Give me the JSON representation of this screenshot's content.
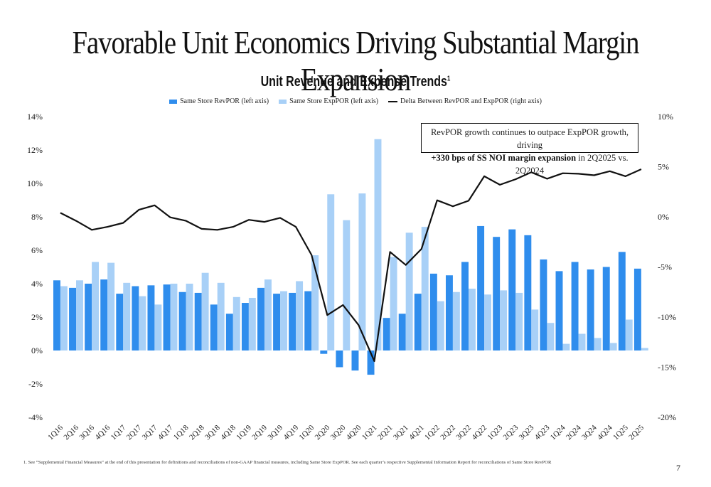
{
  "page": {
    "title": "Favorable Unit Economics Driving Substantial Margin Expansion",
    "footnote": "1. See “Supplemental Financial Measures” at the end of this presentation for definitions and reconciliations of non-GAAP financial measures, including Same Store ExpPOR. See each quarter’s respective Supplemental Information Report for reconciliations of Same Store RevPOR",
    "page_number": "7"
  },
  "callout": {
    "line1": "RevPOR growth continues to outpace ExpPOR growth, driving",
    "line2_bold": "+330 bps of SS NOI margin expansion",
    "line2_rest": " in 2Q2025 vs. 2Q2024"
  },
  "colors": {
    "revpor": "#2f8ded",
    "exppor": "#a8d0f7",
    "delta": "#111111"
  },
  "chart_data": {
    "type": "bar",
    "title": "Unit Revenue and Expense Trends",
    "title_footnote_marker": "1",
    "categories": [
      "1Q16",
      "2Q16",
      "3Q16",
      "4Q16",
      "1Q17",
      "2Q17",
      "3Q17",
      "4Q17",
      "1Q18",
      "2Q18",
      "3Q18",
      "4Q18",
      "1Q19",
      "2Q19",
      "3Q19",
      "4Q19",
      "1Q20",
      "2Q20",
      "3Q20",
      "4Q20",
      "1Q21",
      "2Q21",
      "3Q21",
      "4Q21",
      "1Q22",
      "2Q22",
      "3Q22",
      "4Q22",
      "1Q23",
      "2Q23",
      "3Q23",
      "4Q23",
      "1Q24",
      "2Q24",
      "3Q24",
      "4Q24",
      "1Q25",
      "2Q25"
    ],
    "series": [
      {
        "name": "Same Store RevPOR (left axis)",
        "type": "bar",
        "axis": "left",
        "values": [
          4.2,
          3.75,
          4.0,
          4.25,
          3.4,
          3.85,
          3.9,
          3.95,
          3.5,
          3.45,
          2.75,
          2.2,
          2.85,
          3.75,
          3.4,
          3.45,
          3.55,
          -0.2,
          -1.0,
          -1.2,
          -1.45,
          1.95,
          2.2,
          3.4,
          4.6,
          4.5,
          5.3,
          7.45,
          6.8,
          7.25,
          6.9,
          5.45,
          4.75,
          5.3,
          4.85,
          5.0,
          5.9,
          4.9
        ]
      },
      {
        "name": "Same Store ExpPOR (left axis)",
        "type": "bar",
        "axis": "left",
        "values": [
          3.85,
          4.2,
          5.3,
          5.25,
          4.05,
          3.25,
          2.75,
          4.0,
          4.0,
          4.65,
          4.05,
          3.2,
          3.15,
          4.25,
          3.55,
          4.15,
          5.7,
          9.35,
          7.8,
          9.4,
          12.65,
          5.6,
          7.05,
          7.4,
          2.95,
          3.5,
          3.7,
          3.35,
          3.6,
          3.45,
          2.45,
          1.65,
          0.4,
          1.0,
          0.75,
          0.45,
          1.85,
          0.15
        ]
      },
      {
        "name": "Delta Between RevPOR and ExpPOR (right axis)",
        "type": "line",
        "axis": "right",
        "values": [
          0.4,
          -0.4,
          -1.3,
          -1.0,
          -0.6,
          0.7,
          1.15,
          -0.05,
          -0.4,
          -1.2,
          -1.3,
          -1.0,
          -0.3,
          -0.5,
          -0.1,
          -1.0,
          -3.8,
          -9.8,
          -8.8,
          -10.8,
          -14.4,
          -3.5,
          -4.8,
          -3.2,
          1.65,
          1.05,
          1.6,
          4.05,
          3.2,
          3.75,
          4.45,
          3.8,
          4.35,
          4.3,
          4.15,
          4.55,
          4.05,
          4.75
        ]
      }
    ],
    "left_axis": {
      "min": -4,
      "max": 14,
      "ticks": [
        "-4%",
        "-2%",
        "0%",
        "2%",
        "4%",
        "6%",
        "8%",
        "10%",
        "12%",
        "14%"
      ]
    },
    "right_axis": {
      "min": -20,
      "max": 10,
      "ticks": [
        "-20%",
        "-15%",
        "-10%",
        "-5%",
        "0%",
        "5%",
        "10%"
      ]
    },
    "grid": false,
    "legend_position": "top"
  }
}
